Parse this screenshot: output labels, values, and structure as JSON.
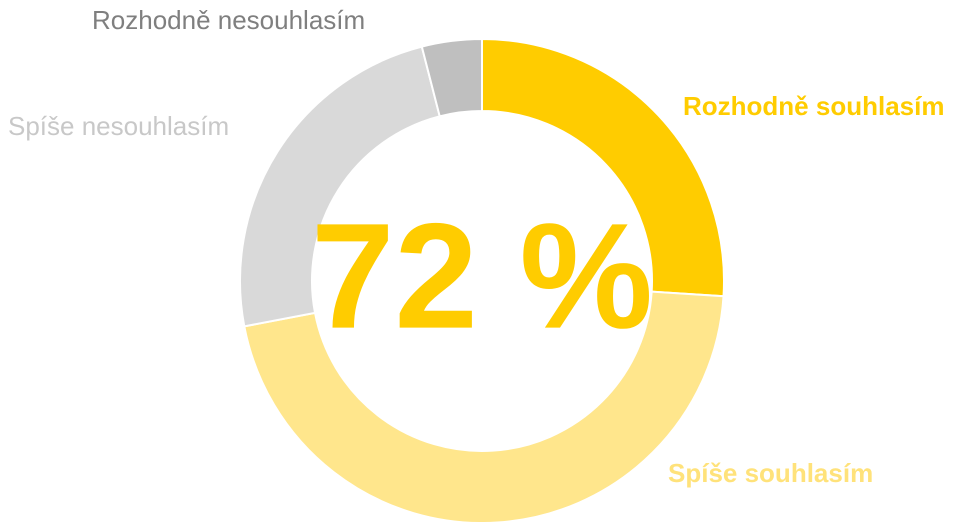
{
  "chart_data": {
    "type": "pie",
    "categories": [
      "Rozhodně souhlasím",
      "Spíše souhlasím",
      "Spíše nesouhlasím",
      "Rozhodně nesouhlasím"
    ],
    "values": [
      26,
      46,
      24,
      4
    ],
    "colors": [
      "#ffcc00",
      "#ffe68c",
      "#d9d9d9",
      "#bfbfbf"
    ],
    "label_colors": [
      "#ffcc00",
      "#ffe27a",
      "#c8c8c8",
      "#7f7f7f"
    ],
    "center_label": "72 %"
  }
}
